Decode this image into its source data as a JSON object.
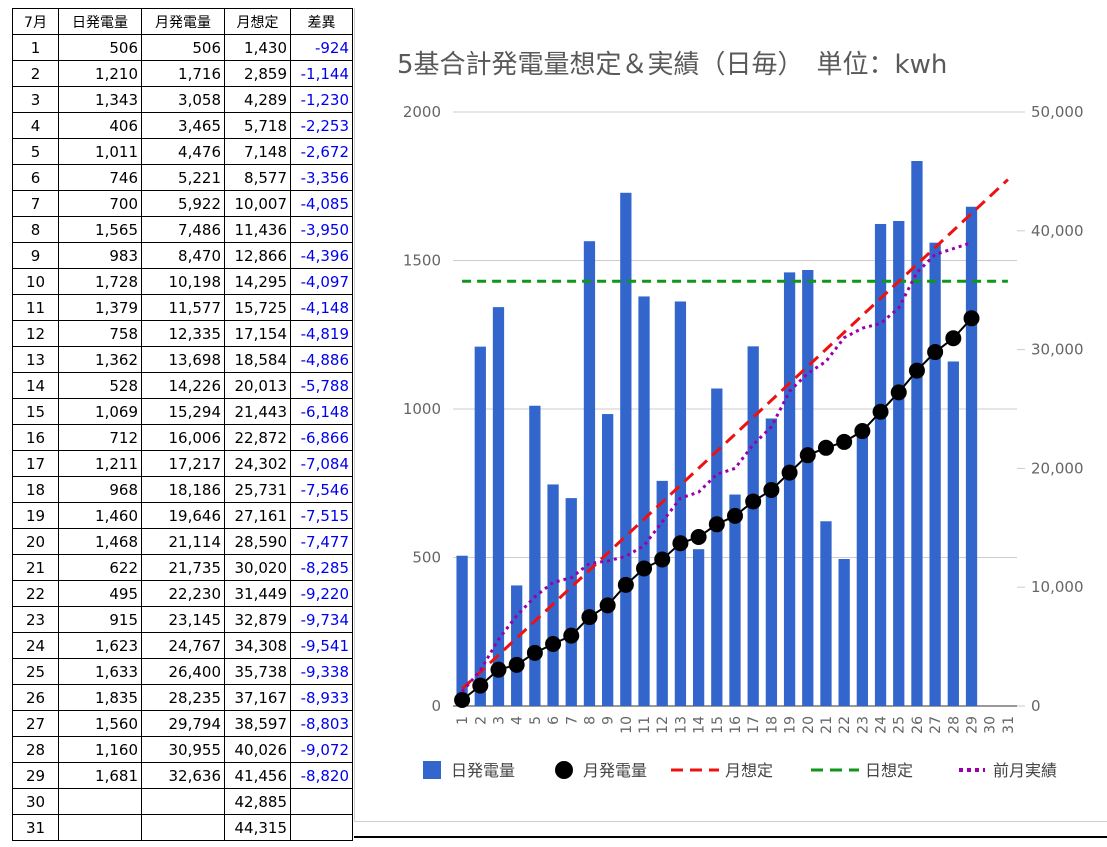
{
  "table": {
    "headers": [
      "7月",
      "日発電量",
      "月発電量",
      "月想定",
      "差異"
    ],
    "rows": [
      [
        "1",
        "506",
        "506",
        "1,430",
        "-924"
      ],
      [
        "2",
        "1,210",
        "1,716",
        "2,859",
        "-1,144"
      ],
      [
        "3",
        "1,343",
        "3,058",
        "4,289",
        "-1,230"
      ],
      [
        "4",
        "406",
        "3,465",
        "5,718",
        "-2,253"
      ],
      [
        "5",
        "1,011",
        "4,476",
        "7,148",
        "-2,672"
      ],
      [
        "6",
        "746",
        "5,221",
        "8,577",
        "-3,356"
      ],
      [
        "7",
        "700",
        "5,922",
        "10,007",
        "-4,085"
      ],
      [
        "8",
        "1,565",
        "7,486",
        "11,436",
        "-3,950"
      ],
      [
        "9",
        "983",
        "8,470",
        "12,866",
        "-4,396"
      ],
      [
        "10",
        "1,728",
        "10,198",
        "14,295",
        "-4,097"
      ],
      [
        "11",
        "1,379",
        "11,577",
        "15,725",
        "-4,148"
      ],
      [
        "12",
        "758",
        "12,335",
        "17,154",
        "-4,819"
      ],
      [
        "13",
        "1,362",
        "13,698",
        "18,584",
        "-4,886"
      ],
      [
        "14",
        "528",
        "14,226",
        "20,013",
        "-5,788"
      ],
      [
        "15",
        "1,069",
        "15,294",
        "21,443",
        "-6,148"
      ],
      [
        "16",
        "712",
        "16,006",
        "22,872",
        "-6,866"
      ],
      [
        "17",
        "1,211",
        "17,217",
        "24,302",
        "-7,084"
      ],
      [
        "18",
        "968",
        "18,186",
        "25,731",
        "-7,546"
      ],
      [
        "19",
        "1,460",
        "19,646",
        "27,161",
        "-7,515"
      ],
      [
        "20",
        "1,468",
        "21,114",
        "28,590",
        "-7,477"
      ],
      [
        "21",
        "622",
        "21,735",
        "30,020",
        "-8,285"
      ],
      [
        "22",
        "495",
        "22,230",
        "31,449",
        "-9,220"
      ],
      [
        "23",
        "915",
        "23,145",
        "32,879",
        "-9,734"
      ],
      [
        "24",
        "1,623",
        "24,767",
        "34,308",
        "-9,541"
      ],
      [
        "25",
        "1,633",
        "26,400",
        "35,738",
        "-9,338"
      ],
      [
        "26",
        "1,835",
        "28,235",
        "37,167",
        "-8,933"
      ],
      [
        "27",
        "1,560",
        "29,794",
        "38,597",
        "-8,803"
      ],
      [
        "28",
        "1,160",
        "30,955",
        "40,026",
        "-9,072"
      ],
      [
        "29",
        "1,681",
        "32,636",
        "41,456",
        "-8,820"
      ],
      [
        "30",
        "",
        "",
        "42,885",
        ""
      ],
      [
        "31",
        "",
        "",
        "44,315",
        ""
      ]
    ]
  },
  "colors": {
    "bar": "#3366cc",
    "cumulative": "#000000",
    "monthly_target": "#ee1111",
    "daily_target": "#109618",
    "prev_month": "#9900aa",
    "negative_text": "#0000ee",
    "axis_text": "#666666",
    "gridline": "#cccccc"
  },
  "chart_data": {
    "type": "bar",
    "title": "5基合計発電量想定＆実績（日毎）　単位：kwh",
    "categories": [
      "1",
      "2",
      "3",
      "4",
      "5",
      "6",
      "7",
      "8",
      "9",
      "10",
      "11",
      "12",
      "13",
      "14",
      "15",
      "16",
      "17",
      "18",
      "19",
      "20",
      "21",
      "22",
      "23",
      "24",
      "25",
      "26",
      "27",
      "28",
      "29",
      "30",
      "31"
    ],
    "ylim_left": [
      0,
      2000
    ],
    "yticks_left": [
      "0",
      "500",
      "1000",
      "1500",
      "2000"
    ],
    "ylim_right": [
      0,
      50000
    ],
    "yticks_right": [
      "0",
      "10,000",
      "20,000",
      "30,000",
      "40,000",
      "50,000"
    ],
    "grid": true,
    "legend_position": "bottom",
    "series": [
      {
        "name": "日発電量",
        "type": "bar",
        "axis": "left",
        "values": [
          506,
          1210,
          1343,
          406,
          1011,
          746,
          700,
          1565,
          983,
          1728,
          1379,
          758,
          1362,
          528,
          1069,
          712,
          1211,
          968,
          1460,
          1468,
          622,
          495,
          915,
          1623,
          1633,
          1835,
          1560,
          1160,
          1681,
          null,
          null
        ]
      },
      {
        "name": "月発電量",
        "type": "line-markers",
        "axis": "right",
        "values": [
          506,
          1716,
          3058,
          3465,
          4476,
          5221,
          5922,
          7486,
          8470,
          10198,
          11577,
          12335,
          13698,
          14226,
          15294,
          16006,
          17217,
          18186,
          19646,
          21114,
          21735,
          22230,
          23145,
          24767,
          26400,
          28235,
          29794,
          30955,
          32636,
          null,
          null
        ]
      },
      {
        "name": "月想定",
        "type": "dashed-line",
        "axis": "right",
        "values": [
          1430,
          2859,
          4289,
          5718,
          7148,
          8577,
          10007,
          11436,
          12866,
          14295,
          15725,
          17154,
          18584,
          20013,
          21443,
          22872,
          24302,
          25731,
          27161,
          28590,
          30020,
          31449,
          32879,
          34308,
          35738,
          37167,
          38597,
          40026,
          41456,
          42885,
          44315
        ]
      },
      {
        "name": "日想定",
        "type": "dashed-line",
        "axis": "left",
        "values": [
          1430,
          1430,
          1430,
          1430,
          1430,
          1430,
          1430,
          1430,
          1430,
          1430,
          1430,
          1430,
          1430,
          1430,
          1430,
          1430,
          1430,
          1430,
          1430,
          1430,
          1430,
          1430,
          1430,
          1430,
          1430,
          1430,
          1430,
          1430,
          1430,
          1430,
          1430
        ]
      },
      {
        "name": "前月実績",
        "type": "dotted-line",
        "axis": "right",
        "values": [
          1200,
          3000,
          5600,
          7600,
          9200,
          10400,
          10800,
          12000,
          12200,
          12600,
          13500,
          15500,
          17500,
          18000,
          19500,
          20000,
          22000,
          23500,
          26500,
          28000,
          29000,
          31000,
          31800,
          32200,
          33500,
          36500,
          38000,
          38500,
          39000,
          null,
          null
        ]
      }
    ]
  }
}
